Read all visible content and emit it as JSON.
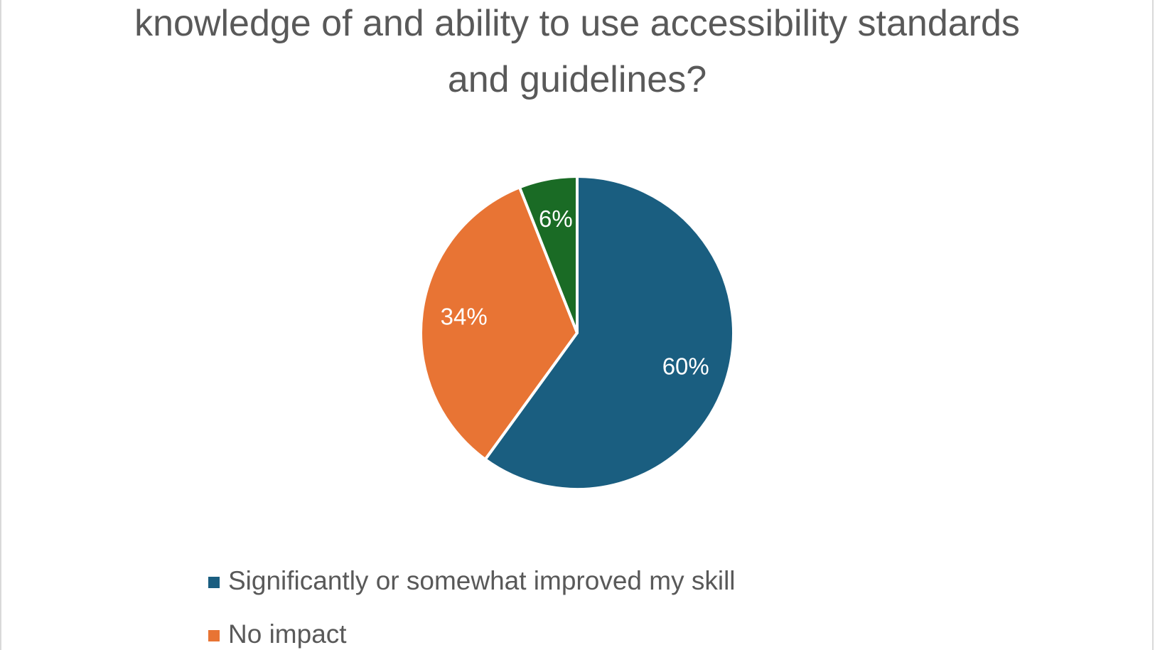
{
  "chart_data": {
    "type": "pie",
    "title": "knowledge of and ability to use accessibility standards and guidelines?",
    "categories": [
      "Significantly or somewhat improved my skill",
      "No impact",
      null
    ],
    "values": [
      60,
      34,
      6
    ],
    "value_labels": [
      "60%",
      "34%",
      "6%"
    ],
    "colors": [
      "#1a5e80",
      "#e87434",
      "#1a6b25"
    ]
  }
}
